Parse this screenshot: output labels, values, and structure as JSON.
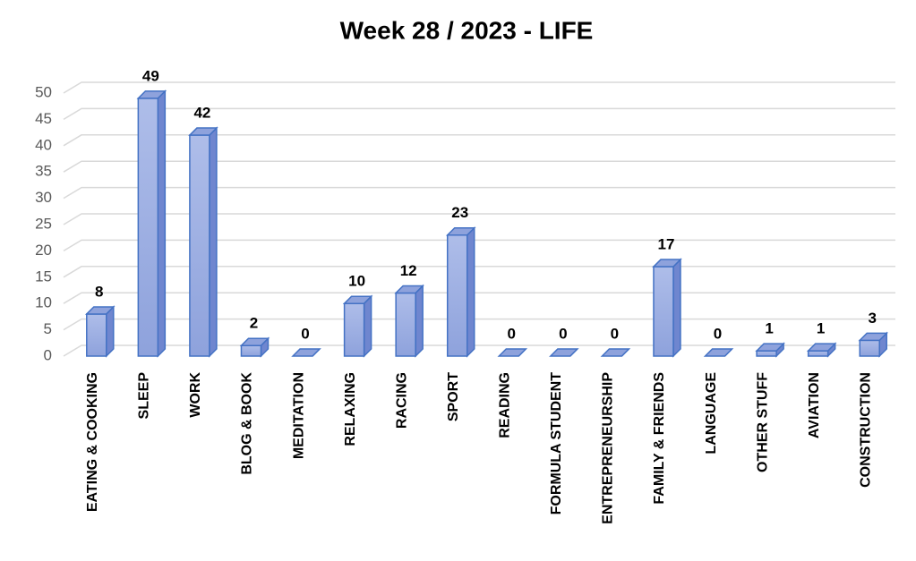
{
  "chart_data": {
    "type": "bar3d",
    "title": "Week 28 / 2023 - LIFE",
    "categories": [
      "EATING & COOKING",
      "SLEEP",
      "WORK",
      "BLOG & BOOK",
      "MEDITATION",
      "RELAXING",
      "RACING",
      "SPORT",
      "READING",
      "FORMULA STUDENT",
      "ENTREPRENEURSHIP",
      "FAMILY & FRIENDS",
      "LANGUAGE",
      "OTHER STUFF",
      "AVIATION",
      "CONSTRUCTION"
    ],
    "values": [
      8,
      49,
      42,
      2,
      0,
      10,
      12,
      23,
      0,
      0,
      0,
      17,
      0,
      1,
      1,
      3
    ],
    "color": "#8fa3dd",
    "ylim": [
      0,
      50
    ],
    "yticks": [
      0,
      5,
      10,
      15,
      20,
      25,
      30,
      35,
      40,
      45,
      50
    ],
    "grid": true
  }
}
